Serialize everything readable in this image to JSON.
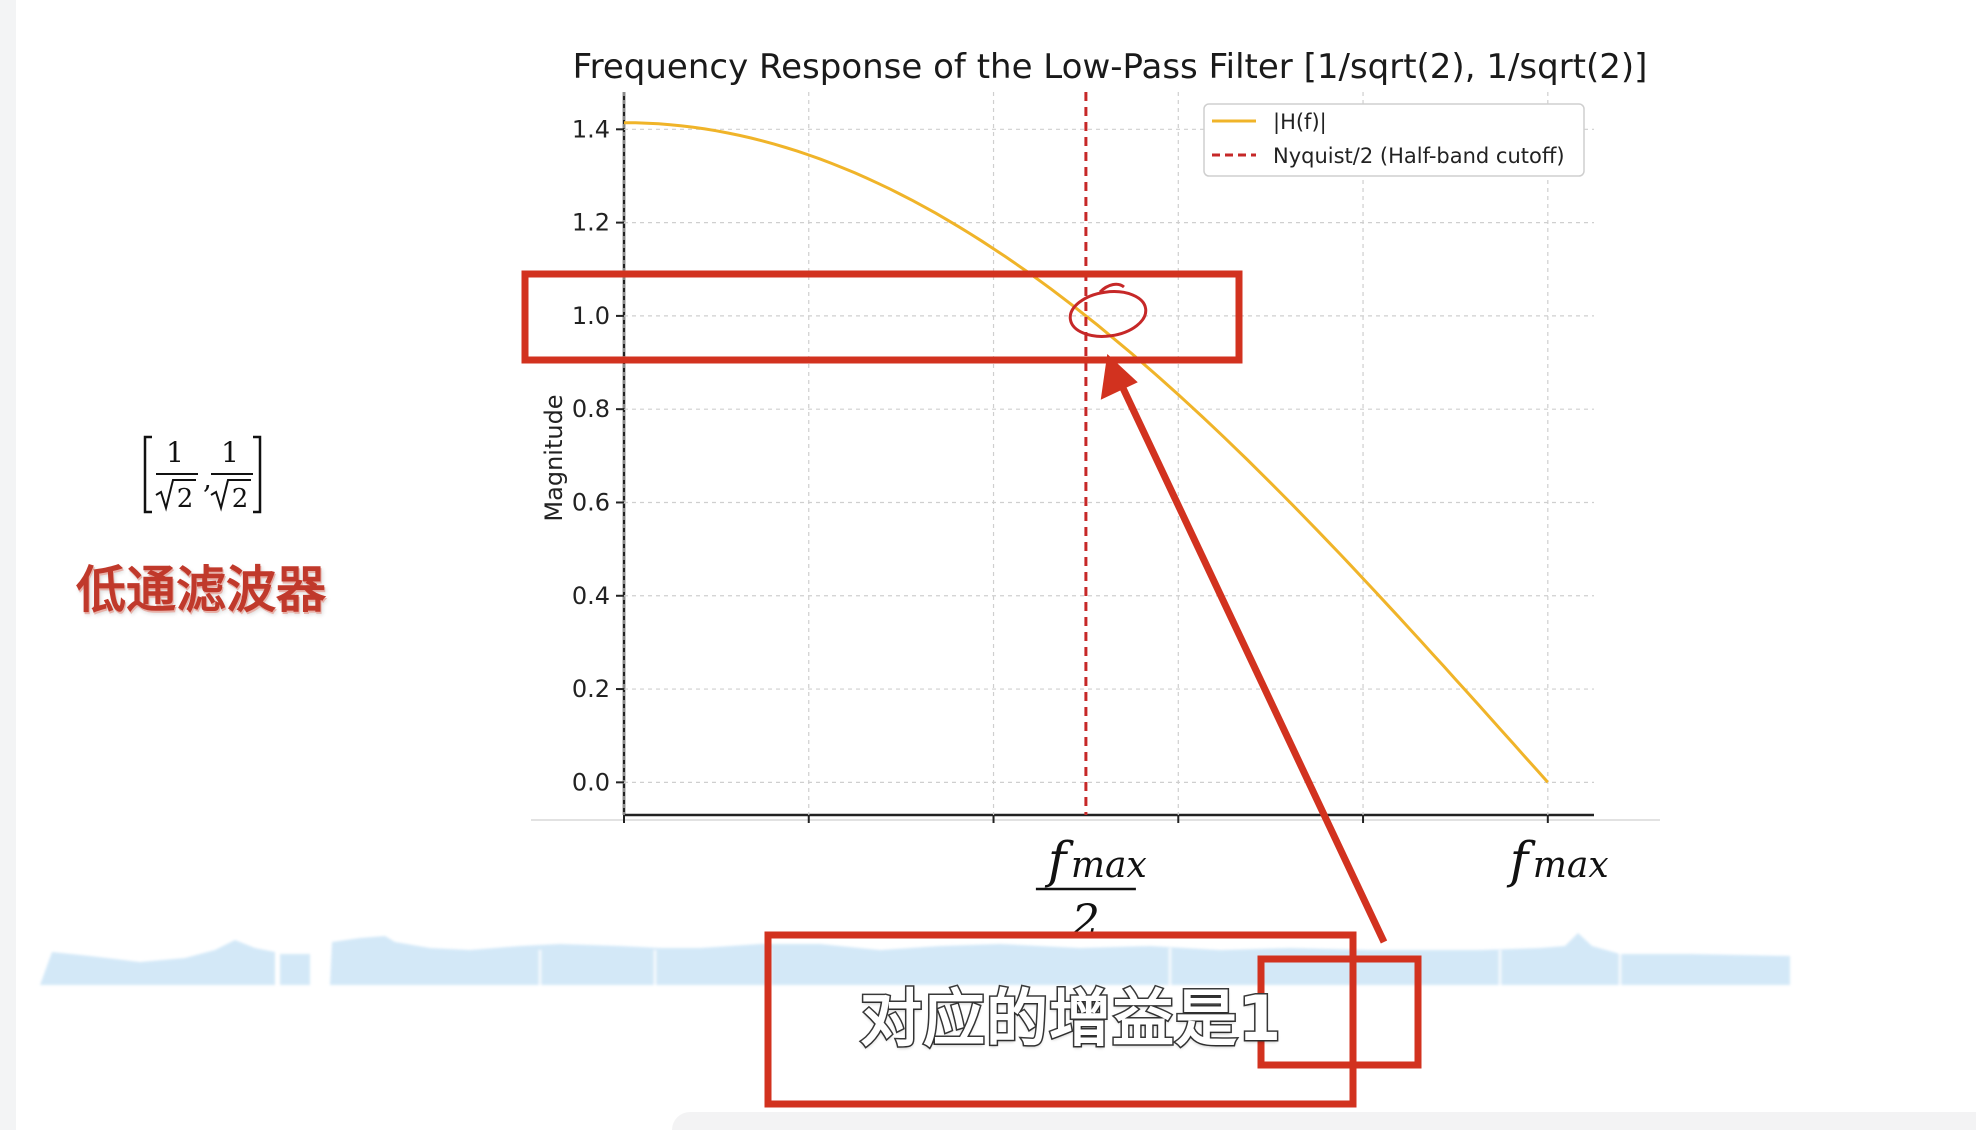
{
  "chart_data": {
    "type": "line",
    "title": "Frequency Response of the Low-Pass Filter [1/sqrt(2), 1/sqrt(2)]",
    "xlabel": "",
    "ylabel": "Magnitude",
    "xlim": [
      0,
      1.05
    ],
    "ylim": [
      -0.07,
      1.48
    ],
    "yticks": [
      0.0,
      0.2,
      0.4,
      0.6,
      0.8,
      1.0,
      1.2,
      1.4
    ],
    "xtick_labels": [
      {
        "x": 0.5,
        "label": "f",
        "sub": "max",
        "denominator": "2"
      },
      {
        "x": 1.0,
        "label": "f",
        "sub": "max"
      }
    ],
    "grid": true,
    "legend_position": "top-right",
    "series": [
      {
        "name": "|H(f)|",
        "color": "#f0b429",
        "style": "solid",
        "x": [
          0,
          0.1,
          0.2,
          0.3,
          0.4,
          0.5,
          0.6,
          0.7,
          0.8,
          0.9,
          1.0
        ],
        "y": [
          1.414,
          1.397,
          1.345,
          1.26,
          1.144,
          1.0,
          0.831,
          0.642,
          0.437,
          0.221,
          0.0
        ]
      },
      {
        "name": "Nyquist/2 (Half-band cutoff)",
        "color": "#c62828",
        "style": "dashed",
        "vertical_line_x": 0.5
      }
    ]
  },
  "annotations": {
    "color": "#d2321f",
    "formula": {
      "numerator": "1",
      "radicand": "2"
    },
    "side_label": "低通滤波器",
    "subtitle": "对应的增益是1"
  }
}
